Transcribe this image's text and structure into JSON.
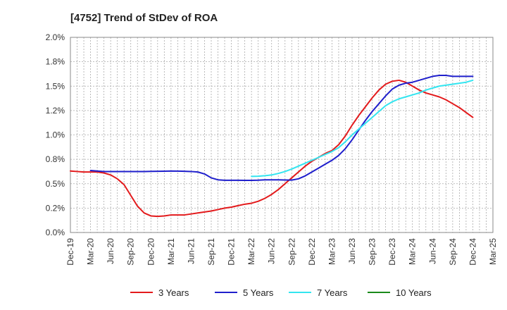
{
  "chart_data": {
    "type": "line",
    "title": "[4752]  Trend of StDev of ROA",
    "xlabel": "",
    "ylabel": "",
    "ylim": [
      0,
      2.0
    ],
    "y_ticks": [
      "0.0%",
      "0.2%",
      "0.5%",
      "0.8%",
      "1.0%",
      "1.2%",
      "1.5%",
      "1.8%",
      "2.0%"
    ],
    "x_ticks": [
      "Dec-19",
      "Mar-20",
      "Jun-20",
      "Sep-20",
      "Dec-20",
      "Mar-21",
      "Jun-21",
      "Sep-21",
      "Dec-21",
      "Mar-22",
      "Jun-22",
      "Sep-22",
      "Dec-22",
      "Mar-23",
      "Jun-23",
      "Sep-23",
      "Dec-23",
      "Mar-24",
      "Jun-24",
      "Sep-24",
      "Dec-24",
      "Mar-25"
    ],
    "grid": true,
    "legend_position": "bottom",
    "colors": {
      "3 Years": "#e31a1c",
      "5 Years": "#1f1fcc",
      "7 Years": "#33e5f0",
      "10 Years": "#1a8a1a"
    },
    "series": [
      {
        "name": "3 Years",
        "x": [
          "Dec-19",
          "Jan-20",
          "Feb-20",
          "Mar-20",
          "Apr-20",
          "May-20",
          "Jun-20",
          "Jul-20",
          "Aug-20",
          "Sep-20",
          "Oct-20",
          "Nov-20",
          "Dec-20",
          "Jan-21",
          "Feb-21",
          "Mar-21",
          "Apr-21",
          "May-21",
          "Jun-21",
          "Jul-21",
          "Aug-21",
          "Sep-21",
          "Oct-21",
          "Nov-21",
          "Dec-21",
          "Jan-22",
          "Feb-22",
          "Mar-22",
          "Apr-22",
          "May-22",
          "Jun-22",
          "Jul-22",
          "Aug-22",
          "Sep-22",
          "Oct-22",
          "Nov-22",
          "Dec-22",
          "Jan-23",
          "Feb-23",
          "Mar-23",
          "Apr-23",
          "May-23",
          "Jun-23",
          "Jul-23",
          "Aug-23",
          "Sep-23",
          "Oct-23",
          "Nov-23",
          "Dec-23",
          "Jan-24",
          "Feb-24",
          "Mar-24",
          "Apr-24",
          "May-24",
          "Jun-24",
          "Jul-24",
          "Aug-24",
          "Sep-24",
          "Oct-24",
          "Nov-24",
          "Dec-24"
        ],
        "values": [
          0.63,
          0.625,
          0.62,
          0.62,
          0.62,
          0.61,
          0.59,
          0.55,
          0.49,
          0.38,
          0.27,
          0.2,
          0.17,
          0.165,
          0.17,
          0.18,
          0.18,
          0.18,
          0.19,
          0.2,
          0.21,
          0.22,
          0.235,
          0.25,
          0.26,
          0.275,
          0.29,
          0.3,
          0.32,
          0.35,
          0.39,
          0.44,
          0.5,
          0.56,
          0.62,
          0.68,
          0.73,
          0.77,
          0.81,
          0.84,
          0.9,
          0.99,
          1.1,
          1.2,
          1.29,
          1.38,
          1.46,
          1.52,
          1.55,
          1.56,
          1.54,
          1.5,
          1.46,
          1.43,
          1.41,
          1.39,
          1.36,
          1.32,
          1.28,
          1.23,
          1.18
        ]
      },
      {
        "name": "5 Years",
        "x": [
          "Mar-20",
          "Apr-20",
          "May-20",
          "Jun-20",
          "Jul-20",
          "Aug-20",
          "Sep-20",
          "Oct-20",
          "Nov-20",
          "Dec-20",
          "Jan-21",
          "Feb-21",
          "Mar-21",
          "Apr-21",
          "May-21",
          "Jun-21",
          "Jul-21",
          "Aug-21",
          "Sep-21",
          "Oct-21",
          "Nov-21",
          "Dec-21",
          "Jan-22",
          "Feb-22",
          "Mar-22",
          "Apr-22",
          "May-22",
          "Jun-22",
          "Jul-22",
          "Aug-22",
          "Sep-22",
          "Oct-22",
          "Nov-22",
          "Dec-22",
          "Jan-23",
          "Feb-23",
          "Mar-23",
          "Apr-23",
          "May-23",
          "Jun-23",
          "Jul-23",
          "Aug-23",
          "Sep-23",
          "Oct-23",
          "Nov-23",
          "Dec-23",
          "Jan-24",
          "Feb-24",
          "Mar-24",
          "Apr-24",
          "May-24",
          "Jun-24",
          "Jul-24",
          "Aug-24",
          "Sep-24",
          "Oct-24",
          "Nov-24",
          "Dec-24"
        ],
        "values": [
          0.635,
          0.63,
          0.625,
          0.625,
          0.625,
          0.625,
          0.625,
          0.625,
          0.625,
          0.626,
          0.627,
          0.628,
          0.63,
          0.629,
          0.627,
          0.625,
          0.62,
          0.6,
          0.56,
          0.54,
          0.535,
          0.535,
          0.535,
          0.534,
          0.534,
          0.536,
          0.54,
          0.54,
          0.54,
          0.538,
          0.537,
          0.55,
          0.58,
          0.62,
          0.66,
          0.7,
          0.74,
          0.79,
          0.86,
          0.95,
          1.05,
          1.15,
          1.24,
          1.32,
          1.4,
          1.47,
          1.51,
          1.53,
          1.54,
          1.56,
          1.58,
          1.6,
          1.61,
          1.61,
          1.6,
          1.6,
          1.6,
          1.6
        ]
      },
      {
        "name": "7 Years",
        "x": [
          "Mar-22",
          "Apr-22",
          "May-22",
          "Jun-22",
          "Jul-22",
          "Aug-22",
          "Sep-22",
          "Oct-22",
          "Nov-22",
          "Dec-22",
          "Jan-23",
          "Feb-23",
          "Mar-23",
          "Apr-23",
          "May-23",
          "Jun-23",
          "Jul-23",
          "Aug-23",
          "Sep-23",
          "Oct-23",
          "Nov-23",
          "Dec-23",
          "Jan-24",
          "Feb-24",
          "Mar-24",
          "Apr-24",
          "May-24",
          "Jun-24",
          "Jul-24",
          "Aug-24",
          "Sep-24",
          "Oct-24",
          "Nov-24",
          "Dec-24"
        ],
        "values": [
          0.575,
          0.577,
          0.582,
          0.59,
          0.605,
          0.625,
          0.65,
          0.68,
          0.71,
          0.74,
          0.77,
          0.8,
          0.83,
          0.87,
          0.93,
          1.0,
          1.06,
          1.12,
          1.18,
          1.24,
          1.3,
          1.34,
          1.37,
          1.39,
          1.41,
          1.43,
          1.46,
          1.48,
          1.5,
          1.51,
          1.52,
          1.53,
          1.54,
          1.56
        ]
      },
      {
        "name": "10 Years",
        "x": [],
        "values": []
      }
    ]
  }
}
